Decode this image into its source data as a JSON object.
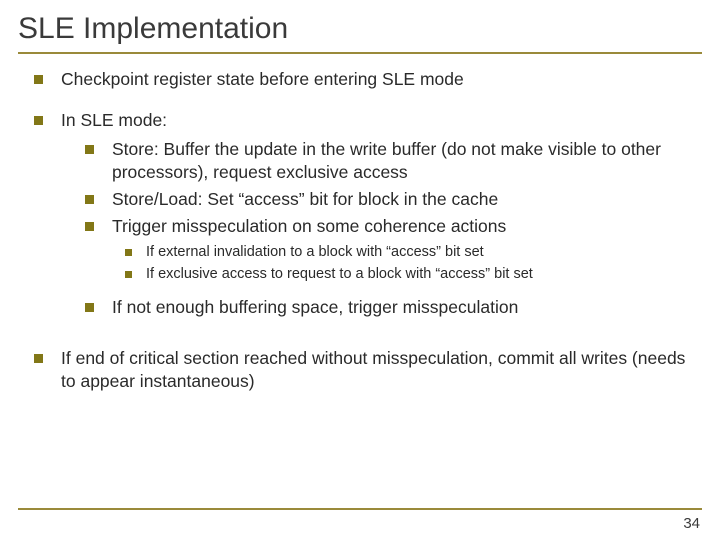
{
  "slide": {
    "title": "SLE Implementation",
    "pageNumber": "34",
    "colors": {
      "ruleColor": "#9a8a3a",
      "bulletColor": "#827717",
      "textColor": "#2a2a2a",
      "titleColor": "#3a3a3a",
      "background": "#ffffff"
    },
    "typography": {
      "titleSize": 30,
      "bodySize": 17.5,
      "subSubSize": 14.5,
      "family": "Verdana"
    },
    "items": [
      {
        "text": "Checkpoint register state before entering SLE mode"
      },
      {
        "text": "In SLE mode:",
        "children": [
          {
            "text": "Store: Buffer the update in the write buffer (do not make visible to other processors), request exclusive access"
          },
          {
            "text": "Store/Load: Set “access” bit for block in the cache"
          },
          {
            "text": "Trigger misspeculation on some coherence actions",
            "children": [
              {
                "text": "If external invalidation to a block with “access” bit set"
              },
              {
                "text": "If exclusive access to request to a block with “access” bit set"
              }
            ]
          },
          {
            "text": "If not enough buffering space, trigger misspeculation"
          }
        ]
      },
      {
        "text": "If end of critical section reached without misspeculation, commit all writes (needs to appear instantaneous)"
      }
    ]
  }
}
